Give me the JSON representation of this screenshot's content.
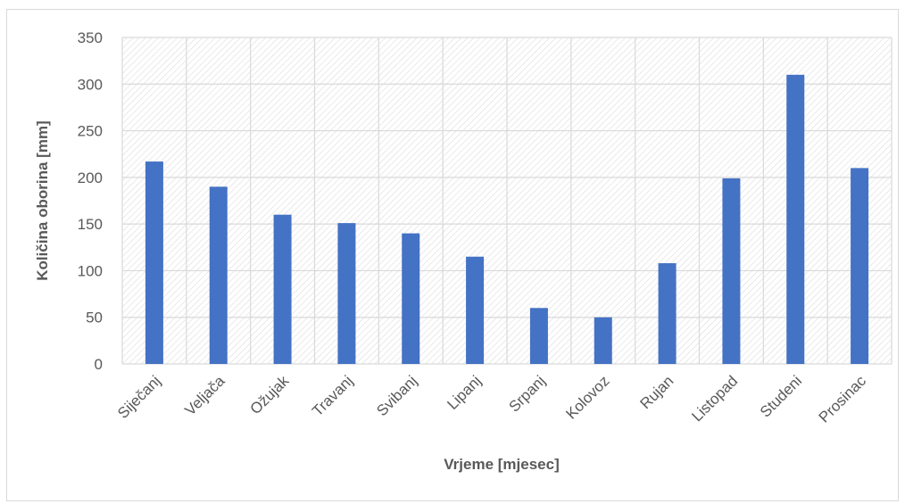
{
  "chart_data": {
    "type": "bar",
    "title": "",
    "xlabel": "Vrjeme [mjesec]",
    "ylabel": "Količina oborina [mm]",
    "categories": [
      "Siječanj",
      "Veljača",
      "Ožujak",
      "Travanj",
      "Svibanj",
      "Lipanj",
      "Srpanj",
      "Kolovoz",
      "Rujan",
      "Listopad",
      "Studeni",
      "Prosinac"
    ],
    "values": [
      217,
      190,
      160,
      151,
      140,
      115,
      60,
      50,
      108,
      199,
      310,
      210
    ],
    "ylim": [
      0,
      350
    ],
    "yticks": [
      0,
      50,
      100,
      150,
      200,
      250,
      300,
      350
    ],
    "grid": true,
    "legend": "none",
    "colors": {
      "bar": "#4472c4",
      "grid": "#d9d9d9",
      "hatch": "#d9d9d9",
      "text": "#595959"
    }
  }
}
